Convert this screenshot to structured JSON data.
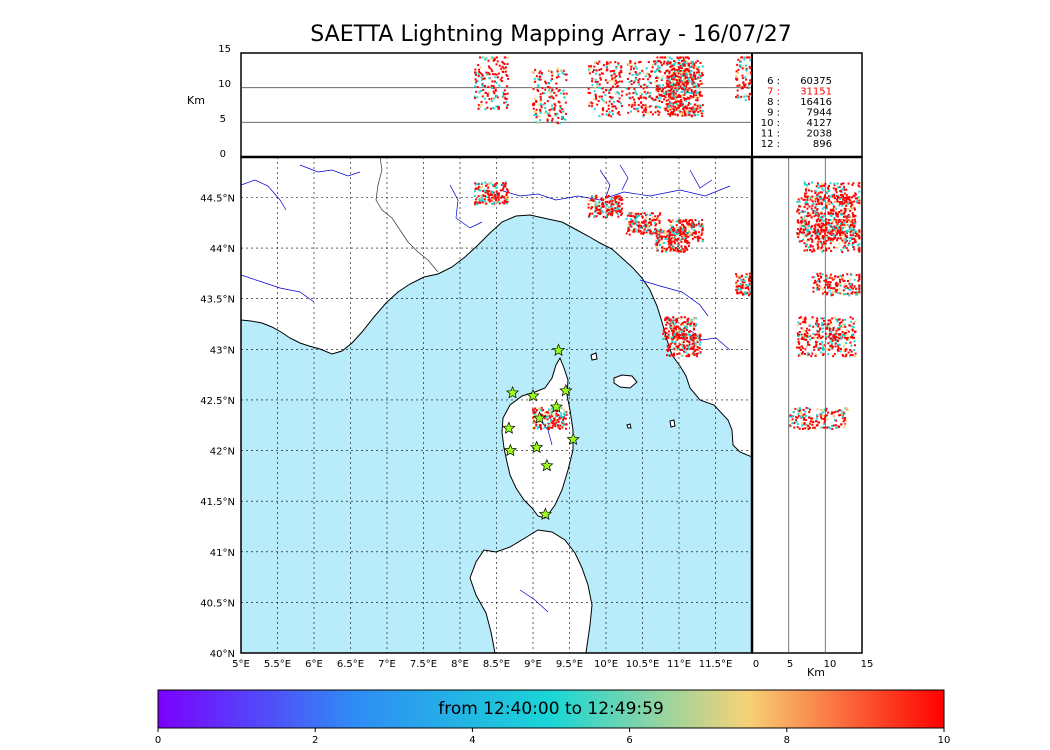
{
  "title": "SAETTA Lightning Mapping Array - 16/07/27",
  "altitude_panel": {
    "ylabel": "Km",
    "yticks": [
      "15",
      "10",
      "5",
      "0"
    ]
  },
  "side_panel": {
    "xlabel": "Km",
    "xticks": [
      "0",
      "5",
      "10",
      "15"
    ]
  },
  "legend_counts": [
    {
      "hour": "6",
      "count": "60375",
      "color": "#000000"
    },
    {
      "hour": "7",
      "count": "31151",
      "color": "#ff0000"
    },
    {
      "hour": "8",
      "count": "16416",
      "color": "#000000"
    },
    {
      "hour": "9",
      "count": "7944",
      "color": "#000000"
    },
    {
      "hour": "10",
      "count": "4127",
      "color": "#000000"
    },
    {
      "hour": "11",
      "count": "2038",
      "color": "#000000"
    },
    {
      "hour": "12",
      "count": "896",
      "color": "#000000"
    }
  ],
  "map": {
    "lon_ticks": [
      "5°E",
      "5.5°E",
      "6°E",
      "6.5°E",
      "7°E",
      "7.5°E",
      "8°E",
      "8.5°E",
      "9°E",
      "9.5°E",
      "10°E",
      "10.5°E",
      "11°E",
      "11.5°E"
    ],
    "lat_ticks": [
      "44.5°N",
      "44°N",
      "43.5°N",
      "43°N",
      "42.5°N",
      "42°N",
      "41.5°N",
      "41°N",
      "40.5°N",
      "40°N"
    ],
    "sea_color": "#b8ecfa",
    "land_color": "#ffffff",
    "river_color": "#0000cc",
    "station_color": "#9cff1a"
  },
  "colorbar": {
    "label": "from 12:40:00 to 12:49:59",
    "ticks": [
      "0",
      "2",
      "4",
      "6",
      "8",
      "10"
    ],
    "colors": [
      "#7a00ff",
      "#2f8cf5",
      "#19d6d6",
      "#f6d276",
      "#ff0000"
    ]
  },
  "lightning_clusters": [
    {
      "lon": 8.42,
      "lat": 44.55,
      "alt": 11
    },
    {
      "lon": 9.98,
      "lat": 44.42,
      "alt": 10
    },
    {
      "lon": 10.5,
      "lat": 44.25,
      "alt": 10
    },
    {
      "lon": 10.9,
      "lat": 44.08,
      "alt": 11
    },
    {
      "lon": 11.08,
      "lat": 44.18,
      "alt": 10
    },
    {
      "lon": 12.0,
      "lat": 43.65,
      "alt": 12
    },
    {
      "lon": 11.0,
      "lat": 43.22,
      "alt": 10
    },
    {
      "lon": 11.05,
      "lat": 43.05,
      "alt": 10
    },
    {
      "lon": 9.22,
      "lat": 42.33,
      "alt": 9
    }
  ],
  "stations": [
    {
      "lon": 9.35,
      "lat": 42.99
    },
    {
      "lon": 8.72,
      "lat": 42.57
    },
    {
      "lon": 9.0,
      "lat": 42.54
    },
    {
      "lon": 9.45,
      "lat": 42.59
    },
    {
      "lon": 9.32,
      "lat": 42.43
    },
    {
      "lon": 9.09,
      "lat": 42.32
    },
    {
      "lon": 8.67,
      "lat": 42.22
    },
    {
      "lon": 9.55,
      "lat": 42.11
    },
    {
      "lon": 9.05,
      "lat": 42.03
    },
    {
      "lon": 8.69,
      "lat": 42.0
    },
    {
      "lon": 9.19,
      "lat": 41.85
    },
    {
      "lon": 9.17,
      "lat": 41.37
    }
  ]
}
